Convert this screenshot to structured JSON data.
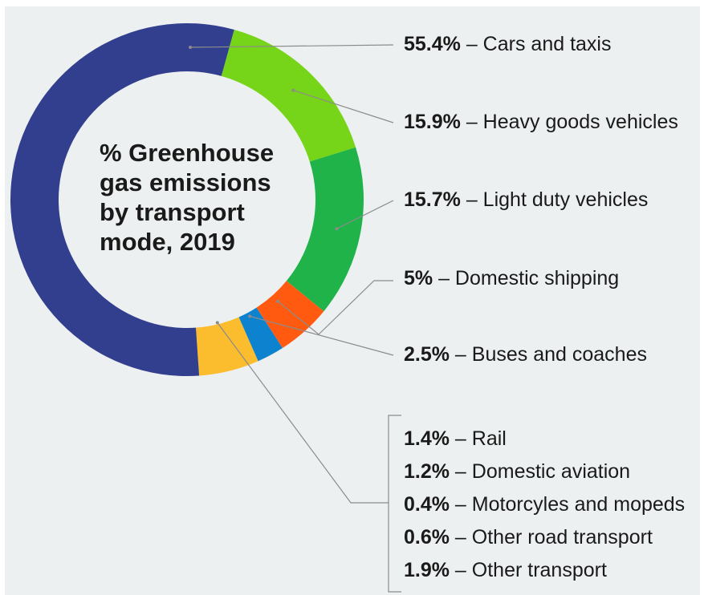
{
  "chart_data": {
    "type": "pie",
    "style": "donut",
    "title": "% Greenhouse gas emissions by transport mode, 2019",
    "title_lines": [
      "% Greenhouse",
      "gas emissions",
      "by transport",
      "mode, 2019"
    ],
    "slices": [
      {
        "label": "Cars and taxis",
        "value": 55.4,
        "value_text": "55.4%",
        "color": "#323f8e"
      },
      {
        "label": "Heavy goods vehicles",
        "value": 15.9,
        "value_text": "15.9%",
        "color": "#76d519"
      },
      {
        "label": "Light duty vehicles",
        "value": 15.7,
        "value_text": "15.7%",
        "color": "#1fb34a"
      },
      {
        "label": "Domestic shipping",
        "value": 5,
        "value_text": "5%",
        "color": "#ff5a10"
      },
      {
        "label": "Buses and coaches",
        "value": 2.5,
        "value_text": "2.5%",
        "color": "#0d83cf"
      },
      {
        "label": "Rail",
        "value": 1.4,
        "value_text": "1.4%",
        "color": "#fbbc2d",
        "group": "other"
      },
      {
        "label": "Domestic aviation",
        "value": 1.2,
        "value_text": "1.2%",
        "color": "#fbbc2d",
        "group": "other"
      },
      {
        "label": "Motorcyles and mopeds",
        "value": 0.4,
        "value_text": "0.4%",
        "color": "#fbbc2d",
        "group": "other"
      },
      {
        "label": "Other road transport",
        "value": 0.6,
        "value_text": "0.6%",
        "color": "#fbbc2d",
        "group": "other"
      },
      {
        "label": "Other transport",
        "value": 1.9,
        "value_text": "1.9%",
        "color": "#fbbc2d",
        "group": "other"
      }
    ],
    "separator": "–",
    "grouped_slice_color": "#fbbc2d",
    "leader_line_color": "#8c8c8c"
  }
}
